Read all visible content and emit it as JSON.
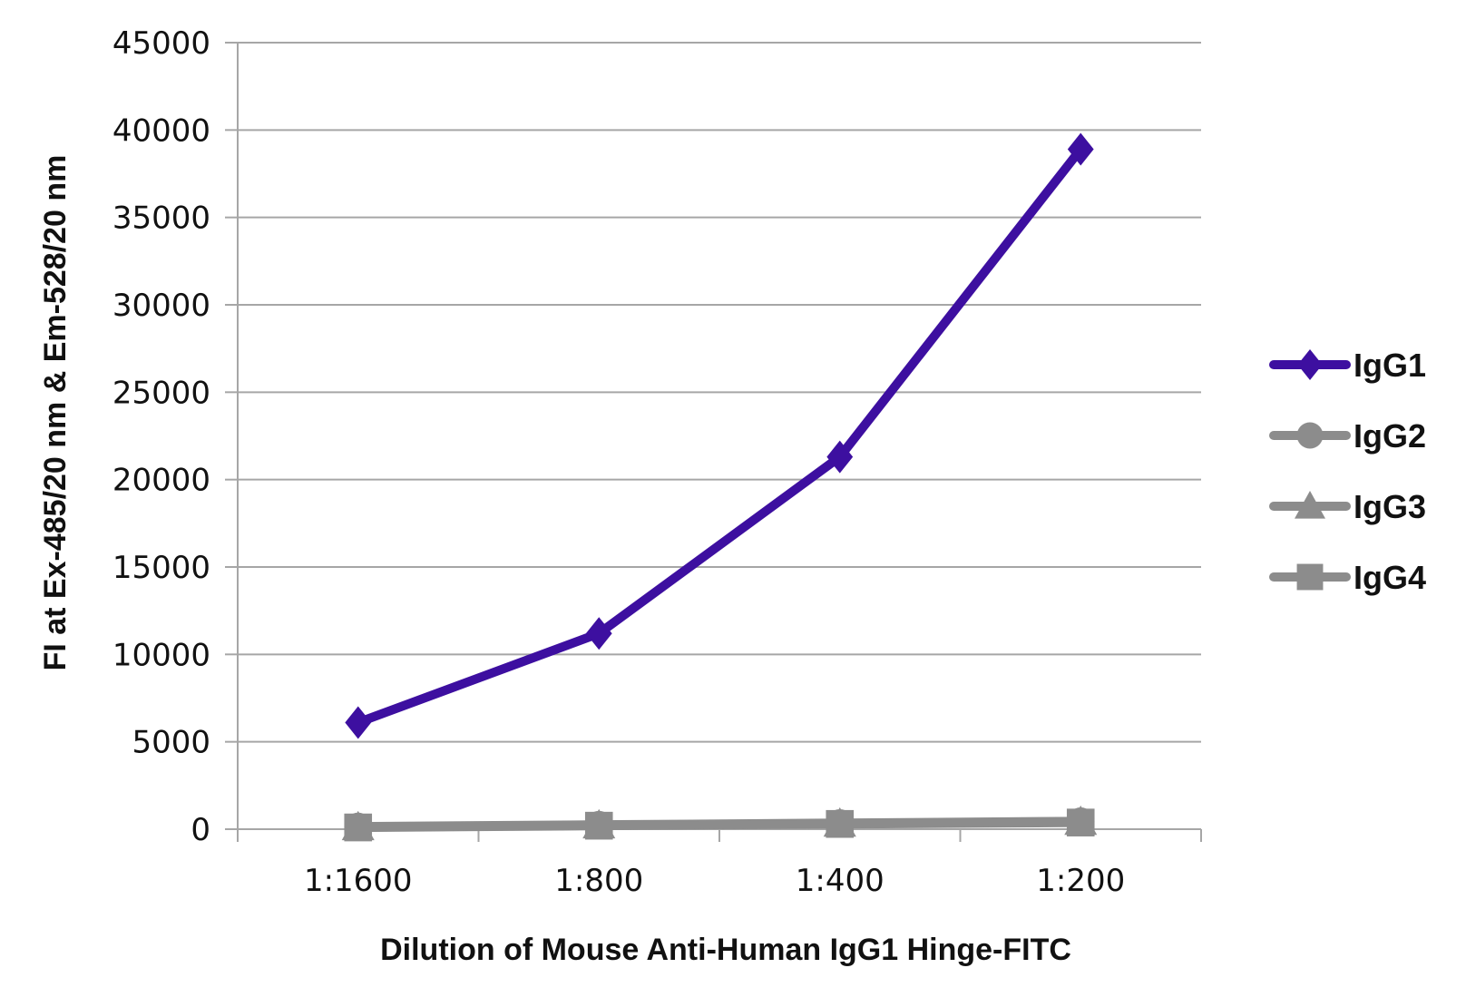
{
  "chart_data": {
    "type": "line",
    "title": "",
    "xlabel": "Dilution of Mouse Anti-Human IgG1 Hinge-FITC",
    "ylabel": "FI at Ex-485/20 nm & Em-528/20 nm",
    "categories": [
      "1:1600",
      "1:800",
      "1:400",
      "1:200"
    ],
    "ylim": [
      0,
      45000
    ],
    "yticks": [
      0,
      5000,
      10000,
      15000,
      20000,
      25000,
      30000,
      35000,
      40000,
      45000
    ],
    "grid": true,
    "legend_position": "right",
    "series": [
      {
        "name": "IgG1",
        "values": [
          6100,
          11200,
          21300,
          38900
        ],
        "color": "#3d0fa0",
        "marker": "diamond"
      },
      {
        "name": "IgG2",
        "values": [
          150,
          250,
          350,
          450
        ],
        "color": "#8c8c8c",
        "marker": "circle"
      },
      {
        "name": "IgG3",
        "values": [
          120,
          220,
          320,
          420
        ],
        "color": "#8c8c8c",
        "marker": "triangle"
      },
      {
        "name": "IgG4",
        "values": [
          100,
          200,
          300,
          380
        ],
        "color": "#8c8c8c",
        "marker": "square"
      }
    ]
  }
}
